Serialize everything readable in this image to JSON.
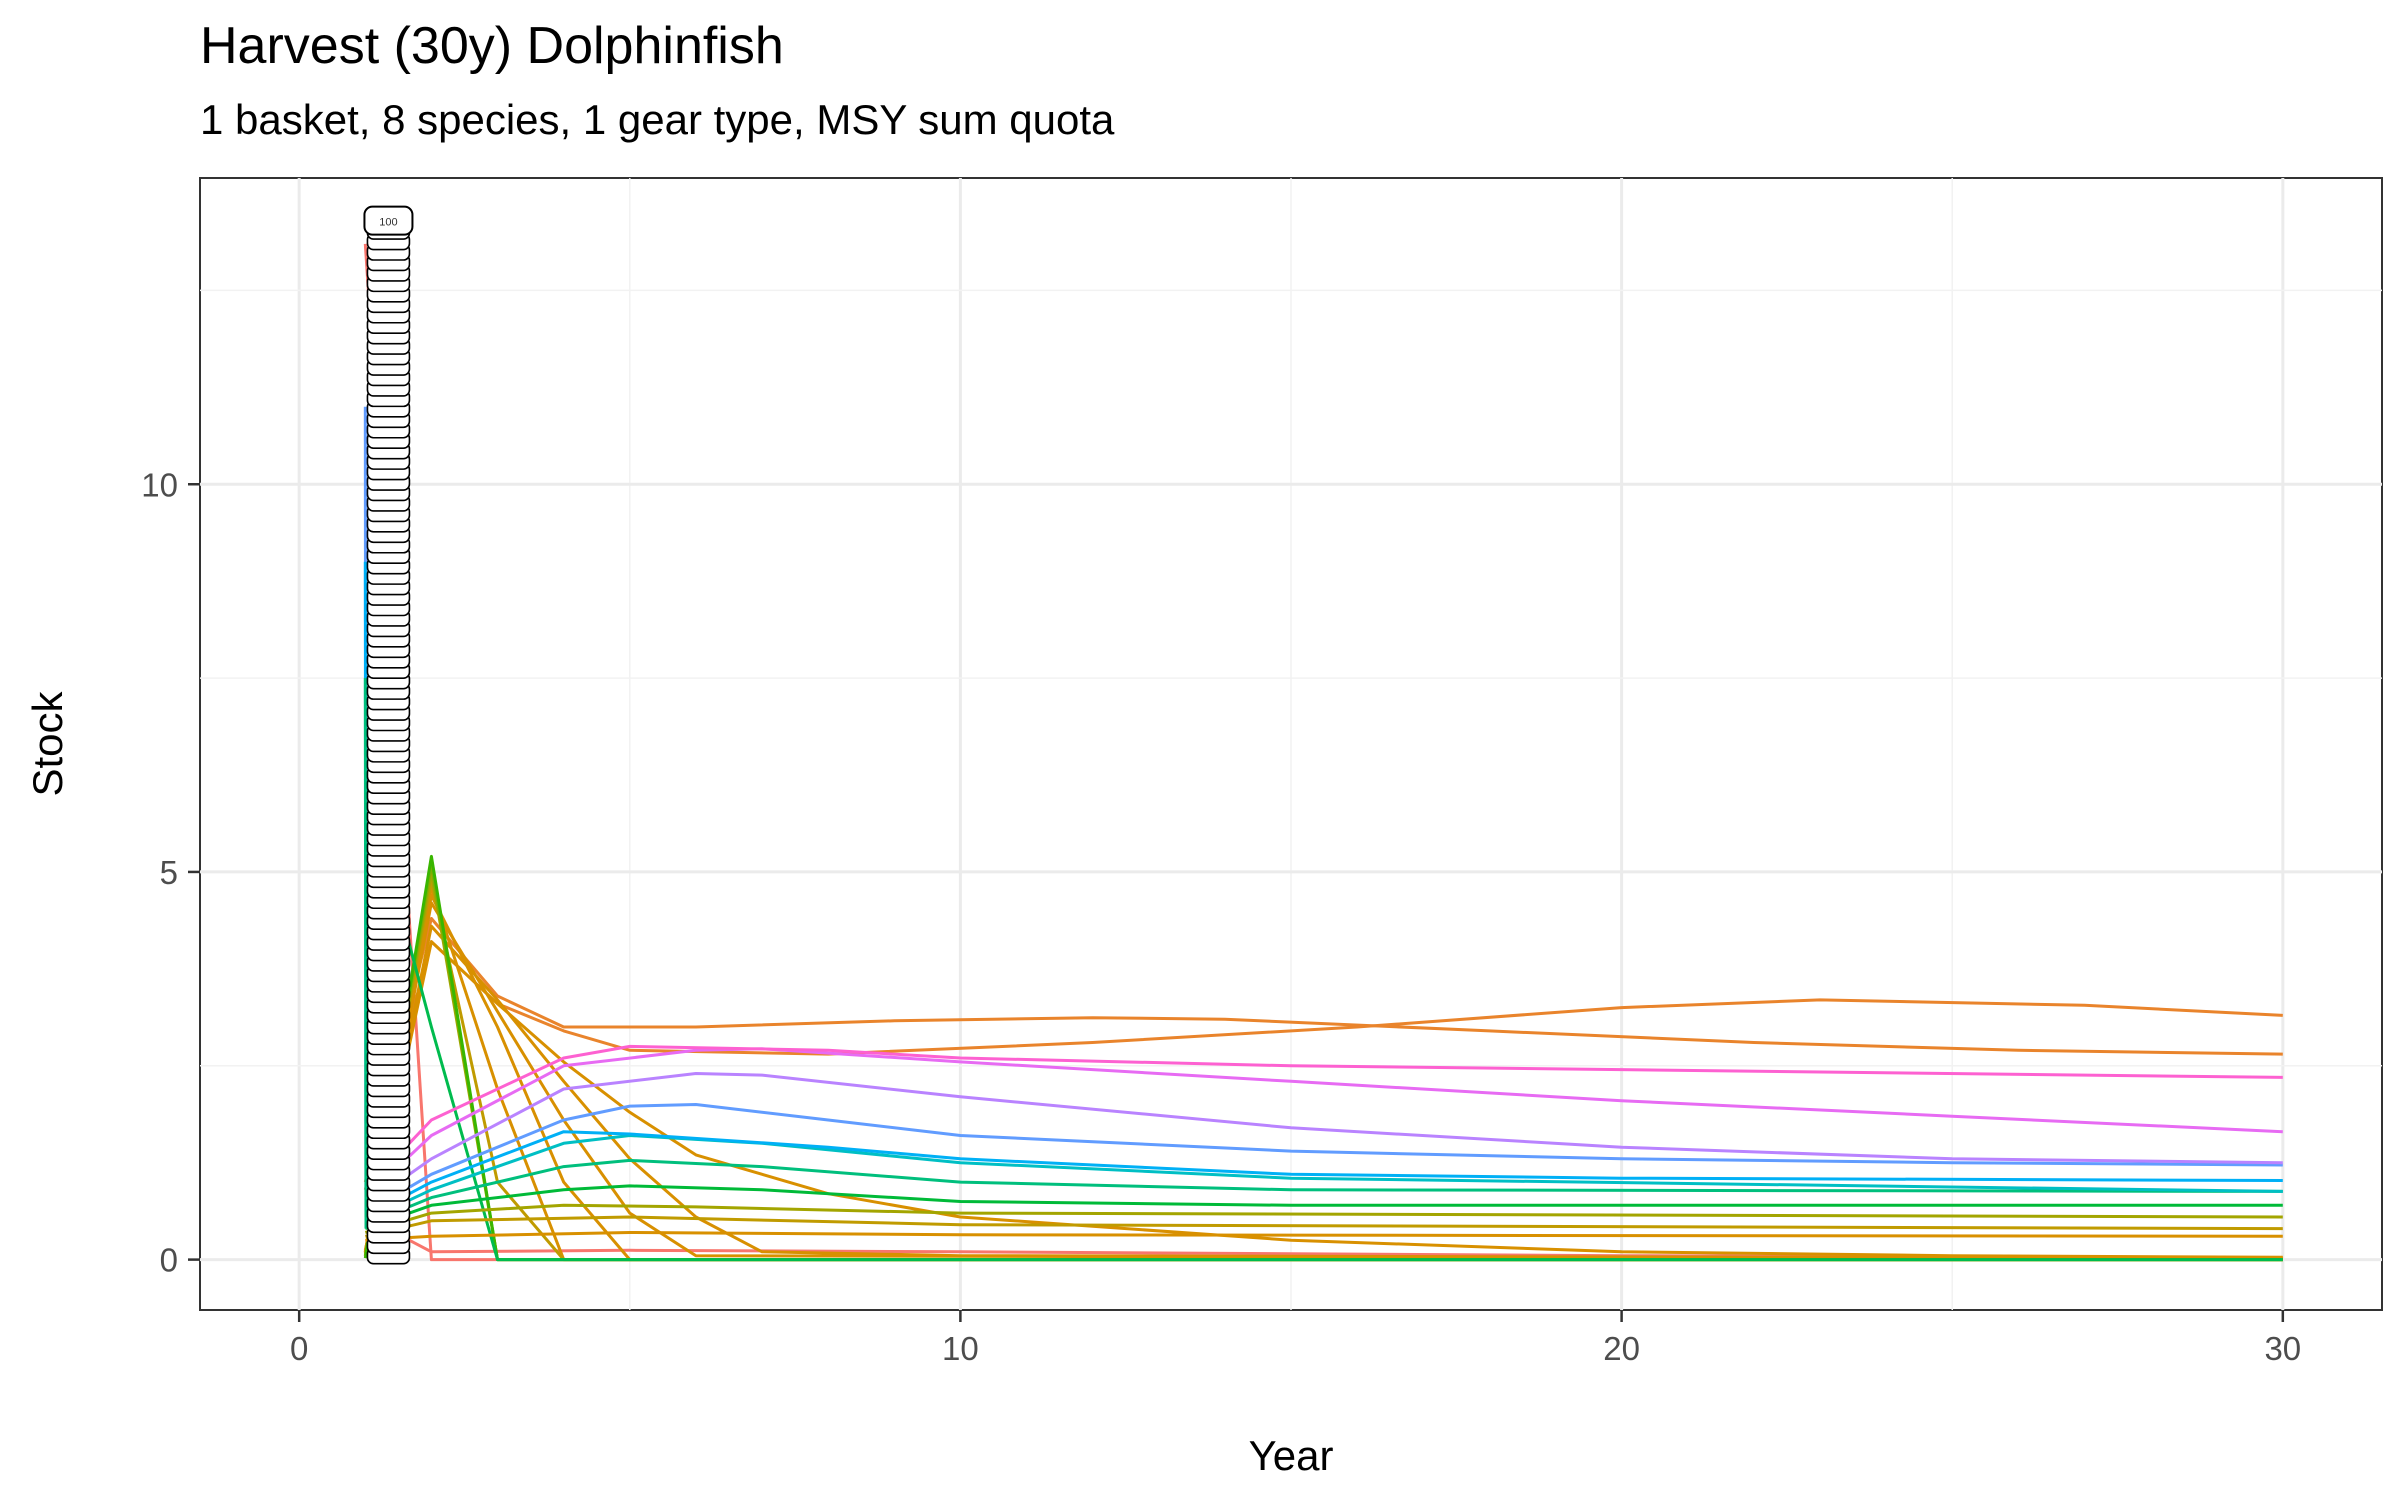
{
  "chart_data": {
    "type": "line",
    "title": "Harvest (30y) Dolphinfish",
    "subtitle": "1 basket, 8 species, 1 gear type, MSY sum quota",
    "xlabel": "Year",
    "ylabel": "Stock",
    "xlim": [
      -1.5,
      31.5
    ],
    "ylim": [
      -0.65,
      13.95
    ],
    "xticks": [
      0,
      10,
      20,
      30
    ],
    "yticks": [
      0,
      5,
      10
    ],
    "grid": true,
    "legend": "none",
    "label_column": {
      "x": 1.35,
      "top_label": "100",
      "count": 100,
      "y_from": 0.05,
      "y_to": 13.4
    },
    "series": [
      {
        "name": "s1",
        "color": "#F8766D",
        "points": [
          [
            1,
            13.1
          ],
          [
            2,
            0.0
          ],
          [
            30,
            0.0
          ]
        ]
      },
      {
        "name": "s2",
        "color": "#F8766D",
        "points": [
          [
            1,
            0.55
          ],
          [
            2,
            0.1
          ],
          [
            5,
            0.12
          ],
          [
            10,
            0.1
          ],
          [
            20,
            0.05
          ],
          [
            30,
            0.02
          ]
        ]
      },
      {
        "name": "s3",
        "color": "#E9842C",
        "points": [
          [
            1,
            0.9
          ],
          [
            2,
            4.1
          ],
          [
            3,
            3.3
          ],
          [
            4,
            2.95
          ],
          [
            5,
            2.7
          ],
          [
            8,
            2.65
          ],
          [
            12,
            2.8
          ],
          [
            16,
            3.0
          ],
          [
            20,
            3.25
          ],
          [
            23,
            3.35
          ],
          [
            27,
            3.28
          ],
          [
            30,
            3.15
          ]
        ]
      },
      {
        "name": "s4",
        "color": "#E9842C",
        "points": [
          [
            1,
            1.0
          ],
          [
            2,
            4.4
          ],
          [
            3,
            3.4
          ],
          [
            4,
            3.0
          ],
          [
            6,
            3.0
          ],
          [
            9,
            3.08
          ],
          [
            12,
            3.12
          ],
          [
            14,
            3.1
          ],
          [
            18,
            2.95
          ],
          [
            22,
            2.8
          ],
          [
            26,
            2.7
          ],
          [
            30,
            2.65
          ]
        ]
      },
      {
        "name": "s5",
        "color": "#D89000",
        "points": [
          [
            1,
            0.1
          ],
          [
            2,
            4.1
          ],
          [
            3,
            3.3
          ],
          [
            4,
            2.55
          ],
          [
            5,
            1.9
          ],
          [
            6,
            1.35
          ],
          [
            8,
            0.85
          ],
          [
            10,
            0.55
          ],
          [
            15,
            0.25
          ],
          [
            20,
            0.1
          ],
          [
            25,
            0.05
          ],
          [
            30,
            0.03
          ]
        ]
      },
      {
        "name": "s6",
        "color": "#D89000",
        "points": [
          [
            1,
            0.12
          ],
          [
            2,
            4.3
          ],
          [
            3,
            3.35
          ],
          [
            4,
            2.3
          ],
          [
            5,
            1.3
          ],
          [
            6,
            0.55
          ],
          [
            7,
            0.1
          ],
          [
            10,
            0.05
          ],
          [
            30,
            0.02
          ]
        ]
      },
      {
        "name": "s7",
        "color": "#D89000",
        "points": [
          [
            1,
            0.1
          ],
          [
            2,
            4.6
          ],
          [
            3,
            3.2
          ],
          [
            4,
            1.8
          ],
          [
            5,
            0.6
          ],
          [
            6,
            0.05
          ],
          [
            30,
            0.01
          ]
        ]
      },
      {
        "name": "s8",
        "color": "#D89000",
        "points": [
          [
            1,
            0.1
          ],
          [
            2,
            4.7
          ],
          [
            3,
            3.0
          ],
          [
            4,
            1.0
          ],
          [
            5,
            0.0
          ],
          [
            30,
            0.0
          ]
        ]
      },
      {
        "name": "s9",
        "color": "#D89000",
        "points": [
          [
            1,
            0.1
          ],
          [
            2,
            4.8
          ],
          [
            3,
            2.2
          ],
          [
            4,
            0.0
          ],
          [
            30,
            0.0
          ]
        ]
      },
      {
        "name": "s10",
        "color": "#C09B00",
        "points": [
          [
            1,
            0.08
          ],
          [
            2,
            4.9
          ],
          [
            3,
            1.0
          ],
          [
            4,
            0.0
          ],
          [
            30,
            0.0
          ]
        ]
      },
      {
        "name": "s11",
        "color": "#A3A500",
        "points": [
          [
            1,
            0.05
          ],
          [
            2,
            5.0
          ],
          [
            3,
            0.0
          ],
          [
            30,
            0.0
          ]
        ]
      },
      {
        "name": "s12",
        "color": "#7CAE00",
        "points": [
          [
            1,
            0.05
          ],
          [
            2,
            5.1
          ],
          [
            3,
            0.0
          ],
          [
            30,
            0.0
          ]
        ]
      },
      {
        "name": "s13",
        "color": "#39B600",
        "points": [
          [
            1,
            0.02
          ],
          [
            2,
            5.2
          ],
          [
            3,
            0.0
          ],
          [
            30,
            0.0
          ]
        ]
      },
      {
        "name": "s14",
        "color": "#00BB4E",
        "points": [
          [
            1,
            6.2
          ],
          [
            2,
            3.0
          ],
          [
            3,
            0.0
          ],
          [
            30,
            0.0
          ]
        ]
      },
      {
        "name": "s15",
        "color": "#D89000",
        "points": [
          [
            1,
            0.25
          ],
          [
            2,
            0.3
          ],
          [
            5,
            0.35
          ],
          [
            10,
            0.32
          ],
          [
            30,
            0.3
          ]
        ]
      },
      {
        "name": "s16",
        "color": "#C09B00",
        "points": [
          [
            1,
            0.3
          ],
          [
            2,
            0.5
          ],
          [
            5,
            0.55
          ],
          [
            10,
            0.45
          ],
          [
            30,
            0.4
          ]
        ]
      },
      {
        "name": "s17",
        "color": "#A3A500",
        "points": [
          [
            1,
            0.35
          ],
          [
            2,
            0.6
          ],
          [
            4,
            0.7
          ],
          [
            6,
            0.68
          ],
          [
            10,
            0.6
          ],
          [
            30,
            0.55
          ]
        ]
      },
      {
        "name": "s18",
        "color": "#00BA38",
        "points": [
          [
            1,
            0.4
          ],
          [
            2,
            0.7
          ],
          [
            4,
            0.9
          ],
          [
            5,
            0.95
          ],
          [
            7,
            0.9
          ],
          [
            10,
            0.75
          ],
          [
            15,
            0.7
          ],
          [
            30,
            0.7
          ]
        ]
      },
      {
        "name": "s19",
        "color": "#00BF7D",
        "points": [
          [
            1,
            0.45
          ],
          [
            2,
            0.8
          ],
          [
            4,
            1.2
          ],
          [
            5,
            1.28
          ],
          [
            7,
            1.2
          ],
          [
            10,
            1.0
          ],
          [
            15,
            0.9
          ],
          [
            30,
            0.88
          ]
        ]
      },
      {
        "name": "s20",
        "color": "#00BFC4",
        "points": [
          [
            1,
            0.5
          ],
          [
            2,
            0.9
          ],
          [
            4,
            1.5
          ],
          [
            5,
            1.6
          ],
          [
            7,
            1.5
          ],
          [
            10,
            1.25
          ],
          [
            15,
            1.05
          ],
          [
            30,
            0.88
          ]
        ]
      },
      {
        "name": "s21",
        "color": "#00B0F6",
        "points": [
          [
            1,
            0.55
          ],
          [
            2,
            1.0
          ],
          [
            4,
            1.65
          ],
          [
            5,
            1.62
          ],
          [
            8,
            1.45
          ],
          [
            10,
            1.3
          ],
          [
            15,
            1.1
          ],
          [
            20,
            1.05
          ],
          [
            30,
            1.02
          ]
        ]
      },
      {
        "name": "s22",
        "color": "#619CFF",
        "points": [
          [
            1,
            0.6
          ],
          [
            2,
            1.1
          ],
          [
            4,
            1.8
          ],
          [
            5,
            1.98
          ],
          [
            6,
            2.0
          ],
          [
            8,
            1.8
          ],
          [
            10,
            1.6
          ],
          [
            15,
            1.4
          ],
          [
            20,
            1.3
          ],
          [
            25,
            1.25
          ],
          [
            30,
            1.22
          ]
        ]
      },
      {
        "name": "s23",
        "color": "#B983FF",
        "points": [
          [
            1,
            0.7
          ],
          [
            2,
            1.3
          ],
          [
            4,
            2.2
          ],
          [
            6,
            2.4
          ],
          [
            7,
            2.38
          ],
          [
            10,
            2.1
          ],
          [
            15,
            1.7
          ],
          [
            20,
            1.45
          ],
          [
            25,
            1.3
          ],
          [
            30,
            1.25
          ]
        ]
      },
      {
        "name": "s24",
        "color": "#E76BF3",
        "points": [
          [
            1,
            0.8
          ],
          [
            2,
            1.6
          ],
          [
            4,
            2.5
          ],
          [
            6,
            2.7
          ],
          [
            7,
            2.72
          ],
          [
            10,
            2.55
          ],
          [
            15,
            2.3
          ],
          [
            20,
            2.05
          ],
          [
            25,
            1.85
          ],
          [
            30,
            1.65
          ]
        ]
      },
      {
        "name": "s25",
        "color": "#FD61D1",
        "points": [
          [
            1,
            0.9
          ],
          [
            2,
            1.8
          ],
          [
            4,
            2.6
          ],
          [
            5,
            2.75
          ],
          [
            8,
            2.7
          ],
          [
            10,
            2.6
          ],
          [
            15,
            2.5
          ],
          [
            20,
            2.45
          ],
          [
            30,
            2.35
          ]
        ]
      },
      {
        "name": "s26",
        "color": "#619CFF",
        "points": [
          [
            1,
            11.0
          ],
          [
            1.01,
            0.6
          ]
        ]
      },
      {
        "name": "s27",
        "color": "#00B0F6",
        "points": [
          [
            1,
            9.0
          ],
          [
            1.01,
            0.5
          ]
        ]
      },
      {
        "name": "s28",
        "color": "#00BF7D",
        "points": [
          [
            1,
            7.5
          ],
          [
            1.01,
            0.4
          ]
        ]
      }
    ]
  }
}
